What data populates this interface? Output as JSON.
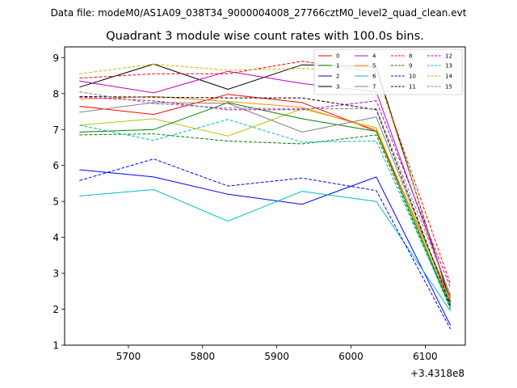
{
  "chart_data": {
    "type": "line",
    "suptitle": "Data file: modeM0/AS1A09_038T34_9000004008_27766cztM0_level2_quad_clean.evt",
    "title": "Quadrant 3 module wise count rates with 100.0s bins.",
    "xlabel": "",
    "ylabel": "",
    "x_offset_label": "+3.4318e8",
    "x": [
      5634,
      5734,
      5834,
      5934,
      6034,
      6134
    ],
    "xlim": [
      5614,
      6154
    ],
    "ylim": [
      1,
      9.3
    ],
    "xticks": [
      5700,
      5800,
      5900,
      6000,
      6100
    ],
    "yticks": [
      1,
      2,
      3,
      4,
      5,
      6,
      7,
      8,
      9
    ],
    "legend_position": "top-right",
    "series": [
      {
        "name": "0",
        "color": "#ff0000",
        "dash": "solid",
        "values": [
          7.65,
          7.42,
          7.98,
          7.75,
          6.95,
          2.3
        ]
      },
      {
        "name": "1",
        "color": "#008000",
        "dash": "solid",
        "values": [
          6.93,
          7.0,
          7.75,
          7.3,
          6.95,
          2.05
        ]
      },
      {
        "name": "2",
        "color": "#0000ff",
        "dash": "solid",
        "values": [
          5.88,
          5.68,
          5.2,
          4.92,
          5.68,
          1.55
        ]
      },
      {
        "name": "3",
        "color": "#000000",
        "dash": "solid",
        "values": [
          8.18,
          8.82,
          8.12,
          8.8,
          8.75,
          2.2
        ]
      },
      {
        "name": "4",
        "color": "#bf00bf",
        "dash": "solid",
        "values": [
          8.35,
          8.02,
          8.62,
          8.28,
          8.05,
          2.35
        ]
      },
      {
        "name": "5",
        "color": "#ff8c00",
        "dash": "solid",
        "values": [
          7.85,
          7.92,
          7.78,
          7.62,
          7.0,
          2.25
        ]
      },
      {
        "name": "6",
        "color": "#00bfbf",
        "dash": "solid",
        "values": [
          5.15,
          5.33,
          4.45,
          5.28,
          5.0,
          1.95
        ]
      },
      {
        "name": "7",
        "color": "#808080",
        "dash": "solid",
        "values": [
          7.48,
          7.75,
          7.73,
          6.93,
          7.35,
          2.15
        ]
      },
      {
        "name": "8",
        "color": "#ff0000",
        "dash": "dashed",
        "values": [
          8.43,
          8.55,
          8.55,
          8.9,
          8.6,
          2.7
        ]
      },
      {
        "name": "9",
        "color": "#008000",
        "dash": "dashed",
        "values": [
          6.85,
          6.88,
          6.68,
          6.6,
          6.85,
          2.0
        ]
      },
      {
        "name": "10",
        "color": "#0000ff",
        "dash": "dashed",
        "values": [
          5.58,
          6.18,
          5.43,
          5.65,
          5.3,
          1.45
        ]
      },
      {
        "name": "11",
        "color": "#000000",
        "dash": "dashed",
        "values": [
          7.92,
          7.9,
          7.88,
          7.88,
          7.55,
          2.1
        ]
      },
      {
        "name": "12",
        "color": "#bf00bf",
        "dash": "dashed",
        "values": [
          7.9,
          7.8,
          7.55,
          7.55,
          7.8,
          2.6
        ]
      },
      {
        "name": "13",
        "color": "#00bfbf",
        "dash": "dashed",
        "values": [
          7.12,
          6.7,
          7.28,
          6.65,
          6.68,
          2.05
        ]
      },
      {
        "name": "14",
        "color": "#bfbf00",
        "dash": "dashed",
        "values": [
          8.55,
          8.82,
          8.65,
          8.7,
          8.62,
          2.3
        ]
      },
      {
        "name": "15",
        "color": "#808080",
        "dash": "dashed",
        "values": [
          8.05,
          7.72,
          7.6,
          7.58,
          7.58,
          2.4
        ]
      }
    ],
    "extra_series": [
      {
        "name": "",
        "color": "#bfbf00",
        "dash": "solid",
        "values": [
          7.12,
          7.3,
          6.82,
          7.58,
          7.05,
          2.1
        ]
      }
    ]
  }
}
